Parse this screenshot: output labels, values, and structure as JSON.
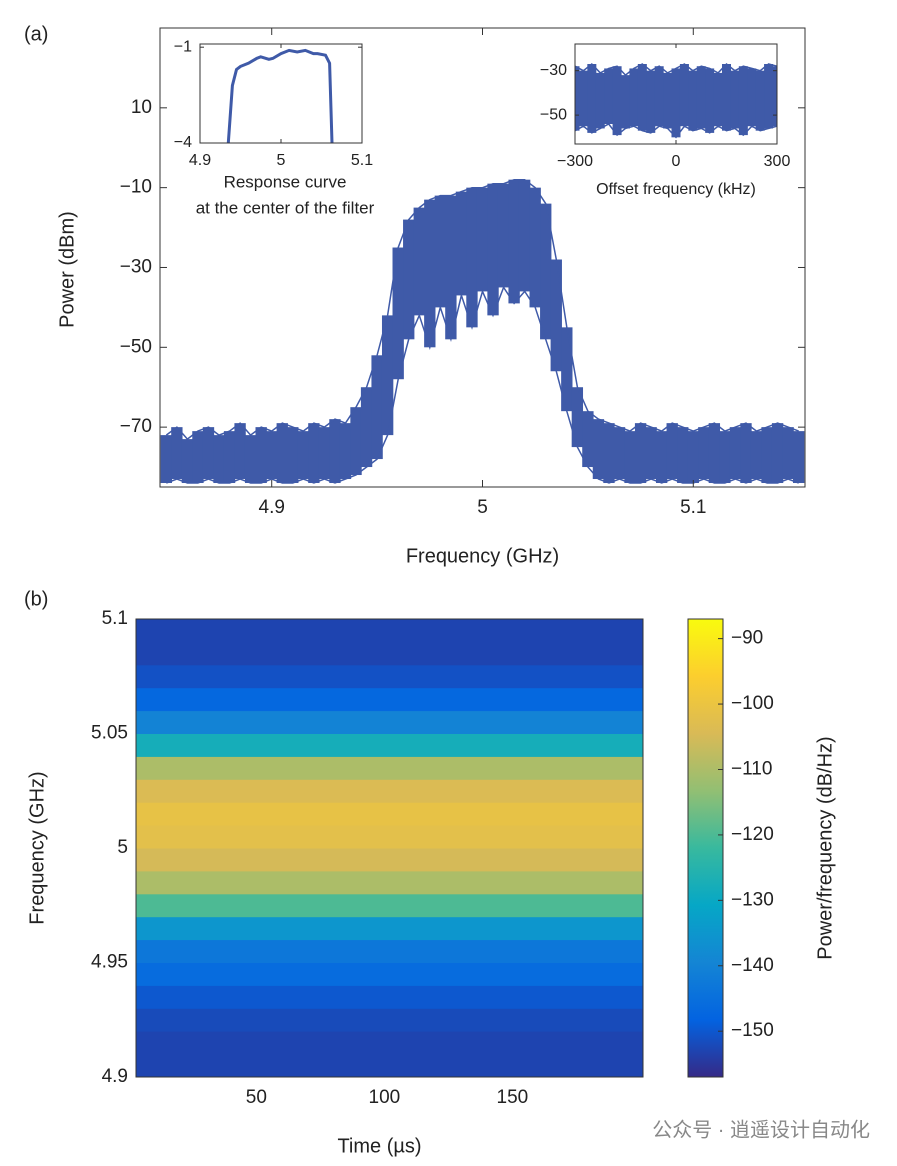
{
  "chart_data": [
    {
      "type": "band",
      "panel_label": "(a)",
      "xlabel": "Frequency (GHz)",
      "ylabel": "Power (dBm)",
      "color": "#3f5aa8",
      "x": [
        4.85,
        4.855,
        4.86,
        4.865,
        4.87,
        4.875,
        4.88,
        4.885,
        4.89,
        4.895,
        4.9,
        4.905,
        4.91,
        4.915,
        4.92,
        4.925,
        4.93,
        4.935,
        4.94,
        4.945,
        4.95,
        4.955,
        4.96,
        4.965,
        4.97,
        4.975,
        4.98,
        4.985,
        4.99,
        4.995,
        5.0,
        5.005,
        5.01,
        5.015,
        5.02,
        5.025,
        5.03,
        5.035,
        5.04,
        5.045,
        5.05,
        5.055,
        5.06,
        5.065,
        5.07,
        5.075,
        5.08,
        5.085,
        5.09,
        5.095,
        5.1,
        5.105,
        5.11,
        5.115,
        5.12,
        5.125,
        5.13,
        5.135,
        5.14,
        5.145,
        5.15
      ],
      "series": [
        {
          "values": [
            -72,
            -70,
            -73,
            -71,
            -70,
            -72,
            -71,
            -69,
            -72,
            -70,
            -71,
            -69,
            -70,
            -71,
            -69,
            -70,
            -68,
            -69,
            -65,
            -60,
            -52,
            -42,
            -25,
            -18,
            -15,
            -13,
            -12,
            -12,
            -11,
            -10,
            -10,
            -9,
            -9,
            -8,
            -8,
            -10,
            -14,
            -28,
            -45,
            -60,
            -66,
            -68,
            -69,
            -70,
            -71,
            -69,
            -70,
            -71,
            -69,
            -70,
            -71,
            -70,
            -69,
            -71,
            -70,
            -69,
            -71,
            -70,
            -69,
            -70,
            -71
          ]
        },
        {
          "values": [
            -84,
            -83,
            -84,
            -84,
            -83,
            -84,
            -84,
            -83,
            -84,
            -84,
            -83,
            -84,
            -84,
            -83,
            -84,
            -83,
            -84,
            -83,
            -82,
            -80,
            -78,
            -72,
            -58,
            -48,
            -42,
            -50,
            -40,
            -48,
            -37,
            -45,
            -36,
            -42,
            -35,
            -39,
            -36,
            -40,
            -48,
            -56,
            -66,
            -75,
            -80,
            -83,
            -84,
            -83,
            -84,
            -84,
            -83,
            -84,
            -83,
            -84,
            -84,
            -83,
            -84,
            -84,
            -83,
            -84,
            -83,
            -84,
            -84,
            -83,
            -84
          ]
        }
      ],
      "xlim": [
        4.847,
        5.153
      ],
      "ylim": [
        -85,
        30
      ],
      "xticks": [
        4.9,
        5,
        5.1
      ],
      "yticks": [
        10,
        {
          "value": -10,
          "label": "−10"
        },
        {
          "value": -30,
          "label": "−30"
        },
        {
          "value": -50,
          "label": "−50"
        },
        {
          "value": -70,
          "label": "−70"
        }
      ]
    },
    {
      "type": "line",
      "caption": [
        "Response curve",
        "at the center of the filter"
      ],
      "color": "#3f5aa8",
      "x": [
        4.935,
        4.94,
        4.945,
        4.95,
        4.96,
        4.97,
        4.975,
        4.985,
        4.99,
        5.0,
        5.01,
        5.02,
        5.03,
        5.04,
        5.045,
        5.055,
        5.06,
        5.063
      ],
      "values": [
        -4,
        -2.2,
        -1.7,
        -1.6,
        -1.5,
        -1.35,
        -1.3,
        -1.38,
        -1.35,
        -1.2,
        -1.1,
        -1.15,
        -1.1,
        -1.2,
        -1.2,
        -1.25,
        -1.5,
        -4
      ],
      "xlim": [
        4.9,
        5.1
      ],
      "ylim": [
        -4,
        -0.9
      ],
      "xticks": [
        4.9,
        5,
        5.1
      ],
      "yticks": [
        {
          "value": -1,
          "label": "−1"
        },
        {
          "value": -4,
          "label": "−4"
        }
      ]
    },
    {
      "type": "band",
      "xlabel": "Offset frequency (kHz)",
      "color": "#3f5aa8",
      "x": [
        -300,
        -275,
        -250,
        -225,
        -200,
        -175,
        -150,
        -125,
        -100,
        -75,
        -50,
        -25,
        0,
        25,
        50,
        75,
        100,
        125,
        150,
        175,
        200,
        225,
        250,
        275,
        300
      ],
      "series": [
        {
          "values": [
            -28,
            -30,
            -27,
            -31,
            -29,
            -28,
            -32,
            -29,
            -27,
            -30,
            -28,
            -31,
            -29,
            -27,
            -30,
            -28,
            -29,
            -31,
            -27,
            -30,
            -28,
            -29,
            -30,
            -27,
            -28
          ]
        },
        {
          "values": [
            -57,
            -55,
            -58,
            -56,
            -54,
            -59,
            -56,
            -55,
            -57,
            -58,
            -55,
            -56,
            -60,
            -55,
            -57,
            -56,
            -58,
            -55,
            -57,
            -56,
            -59,
            -55,
            -57,
            -56,
            -55
          ]
        }
      ],
      "xlim": [
        -300,
        300
      ],
      "ylim": [
        -63,
        -18
      ],
      "xticks": [
        {
          "value": -300,
          "label": "−300"
        },
        0,
        300
      ],
      "yticks": [
        {
          "value": -30,
          "label": "−30"
        },
        {
          "value": -50,
          "label": "−50"
        }
      ]
    },
    {
      "type": "heatmap",
      "panel_label": "(b)",
      "xlabel": "Time (µs)",
      "ylabel": "Frequency (GHz)",
      "colorbar_label": "Power/frequency (dB/Hz)",
      "ybins": [
        4.9,
        4.91,
        4.92,
        4.93,
        4.94,
        4.95,
        4.96,
        4.97,
        4.98,
        4.99,
        5.0,
        5.01,
        5.02,
        5.03,
        5.04,
        5.05,
        5.06,
        5.07,
        5.08,
        5.09,
        5.1
      ],
      "values": [
        -153,
        -153,
        -152,
        -150,
        -146,
        -143,
        -135,
        -120,
        -110,
        -105,
        -102,
        -101,
        -104,
        -110,
        -128,
        -140,
        -147,
        -151,
        -153,
        -153
      ],
      "xlim": [
        3,
        201
      ],
      "ylim": [
        4.9,
        5.1
      ],
      "clim": [
        -157,
        -87
      ],
      "xticks": [
        50,
        100,
        150
      ],
      "yticks": [
        5.1,
        5.05,
        5,
        4.95,
        4.9
      ],
      "cticks": [
        {
          "value": -90,
          "label": "−90"
        },
        {
          "value": -100,
          "label": "−100"
        },
        {
          "value": -110,
          "label": "−110"
        },
        {
          "value": -120,
          "label": "−120"
        },
        {
          "value": -130,
          "label": "−130"
        },
        {
          "value": -140,
          "label": "−140"
        },
        {
          "value": -150,
          "label": "−150"
        }
      ],
      "colormap": [
        "#352a87",
        "#0363e1",
        "#1485d4",
        "#06a7c6",
        "#38b99e",
        "#92bf73",
        "#d9ba56",
        "#fcce2e",
        "#f9fb0e"
      ]
    }
  ],
  "watermark": "公众号 · 逍遥设计自动化"
}
